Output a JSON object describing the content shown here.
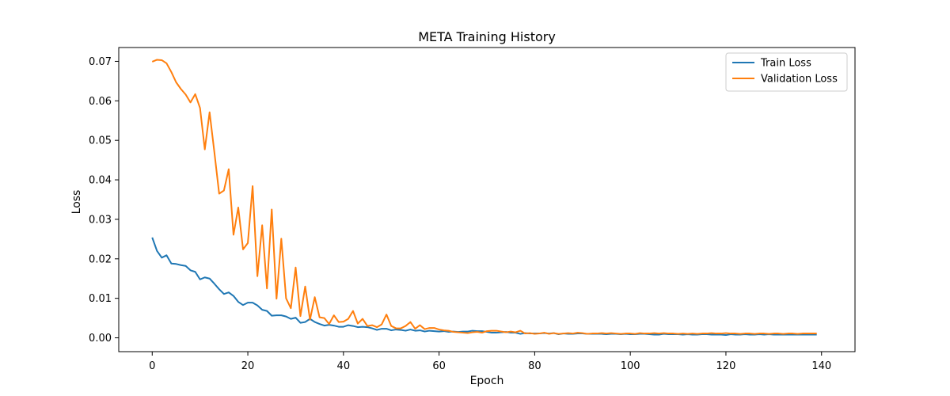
{
  "chart_data": {
    "type": "line",
    "title": "META Training History",
    "xlabel": "Epoch",
    "ylabel": "Loss",
    "xlim": [
      -7,
      147
    ],
    "ylim": [
      -0.0035,
      0.0735
    ],
    "xticks": [
      0,
      20,
      40,
      60,
      80,
      100,
      120,
      140
    ],
    "yticks": [
      0.0,
      0.01,
      0.02,
      0.03,
      0.04,
      0.05,
      0.06,
      0.07
    ],
    "ytick_decimals": 2,
    "grid": false,
    "legend_position": "top-right",
    "colors": {
      "train": "#1f77b4",
      "validation": "#ff7f0e"
    },
    "series": [
      {
        "name": "Train Loss",
        "color": "#1f77b4",
        "x_start": 0,
        "x_step": 1,
        "values": [
          0.0254,
          0.022,
          0.0203,
          0.0209,
          0.0188,
          0.0187,
          0.0184,
          0.0182,
          0.0171,
          0.0167,
          0.0148,
          0.0153,
          0.015,
          0.0137,
          0.0123,
          0.0111,
          0.0115,
          0.0106,
          0.0091,
          0.0083,
          0.0089,
          0.0089,
          0.0082,
          0.0071,
          0.0068,
          0.0056,
          0.0057,
          0.0057,
          0.0054,
          0.0048,
          0.0051,
          0.0038,
          0.004,
          0.0048,
          0.004,
          0.0035,
          0.0031,
          0.0033,
          0.0031,
          0.0028,
          0.0028,
          0.0032,
          0.003,
          0.0027,
          0.0028,
          0.0027,
          0.0024,
          0.002,
          0.0023,
          0.0023,
          0.0019,
          0.0021,
          0.002,
          0.0018,
          0.0021,
          0.0018,
          0.0019,
          0.0016,
          0.0018,
          0.0017,
          0.0016,
          0.0017,
          0.0015,
          0.0016,
          0.0015,
          0.0016,
          0.0016,
          0.0018,
          0.0017,
          0.0017,
          0.0015,
          0.0013,
          0.0013,
          0.0014,
          0.0015,
          0.0013,
          0.0013,
          0.001,
          0.0012,
          0.0011,
          0.0011,
          0.0011,
          0.0012,
          0.0011,
          0.0012,
          0.0009,
          0.0011,
          0.001,
          0.001,
          0.0011,
          0.0011,
          0.001,
          0.001,
          0.001,
          0.001,
          0.0009,
          0.001,
          0.001,
          0.0009,
          0.001,
          0.0009,
          0.0009,
          0.001,
          0.001,
          0.0009,
          0.0008,
          0.0008,
          0.001,
          0.0009,
          0.0009,
          0.0009,
          0.0008,
          0.0009,
          0.0008,
          0.0008,
          0.0009,
          0.0009,
          0.0008,
          0.0008,
          0.0008,
          0.0007,
          0.0009,
          0.0008,
          0.0008,
          0.0009,
          0.0008,
          0.0008,
          0.0009,
          0.0008,
          0.0009,
          0.0008,
          0.0008,
          0.0008,
          0.0008,
          0.0008,
          0.0008,
          0.0008,
          0.0008,
          0.0008,
          0.0008
        ]
      },
      {
        "name": "Validation Loss",
        "color": "#ff7f0e",
        "x_start": 0,
        "x_step": 1,
        "values": [
          0.0699,
          0.0704,
          0.0703,
          0.0695,
          0.0673,
          0.0647,
          0.063,
          0.0616,
          0.0596,
          0.0617,
          0.0582,
          0.0477,
          0.0571,
          0.047,
          0.0365,
          0.0373,
          0.0427,
          0.0261,
          0.033,
          0.0224,
          0.024,
          0.0384,
          0.0156,
          0.0285,
          0.0125,
          0.0325,
          0.0099,
          0.0251,
          0.01,
          0.0075,
          0.0178,
          0.0055,
          0.013,
          0.0046,
          0.0103,
          0.0052,
          0.005,
          0.0035,
          0.0057,
          0.004,
          0.0041,
          0.0048,
          0.0068,
          0.0036,
          0.0048,
          0.003,
          0.0032,
          0.0027,
          0.0034,
          0.0059,
          0.003,
          0.0024,
          0.0024,
          0.003,
          0.004,
          0.0023,
          0.0032,
          0.0022,
          0.0025,
          0.0025,
          0.0021,
          0.0019,
          0.0018,
          0.0015,
          0.0014,
          0.0013,
          0.0012,
          0.0014,
          0.0015,
          0.0013,
          0.0017,
          0.0018,
          0.0018,
          0.0016,
          0.0014,
          0.0016,
          0.0014,
          0.0018,
          0.0011,
          0.0012,
          0.001,
          0.0011,
          0.0013,
          0.001,
          0.0012,
          0.001,
          0.0011,
          0.0012,
          0.0011,
          0.0013,
          0.0012,
          0.001,
          0.0011,
          0.0011,
          0.0012,
          0.0011,
          0.0012,
          0.0011,
          0.001,
          0.0011,
          0.0011,
          0.001,
          0.0012,
          0.0011,
          0.0011,
          0.0012,
          0.0011,
          0.0012,
          0.0011,
          0.0011,
          0.001,
          0.0011,
          0.001,
          0.0011,
          0.001,
          0.0011,
          0.0011,
          0.0012,
          0.0011,
          0.0011,
          0.0012,
          0.0011,
          0.0011,
          0.001,
          0.0011,
          0.0011,
          0.001,
          0.0011,
          0.0011,
          0.001,
          0.0011,
          0.0011,
          0.001,
          0.0011,
          0.0011,
          0.001,
          0.0011,
          0.0011,
          0.0011,
          0.0011
        ]
      }
    ]
  }
}
